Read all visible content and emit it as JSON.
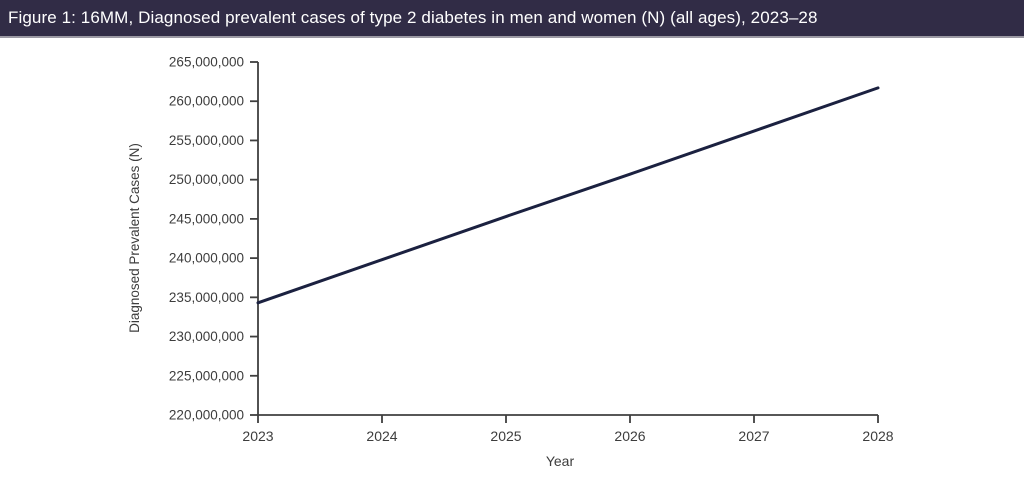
{
  "header": {
    "title": "Figure 1: 16MM, Diagnosed prevalent cases of type 2 diabetes in men and women (N) (all ages), 2023–28"
  },
  "chart_data": {
    "type": "line",
    "title": "Diagnosed prevalent cases of type 2 diabetes in men and women (N) (all ages), 2023–28",
    "x": [
      2023,
      2024,
      2025,
      2026,
      2027,
      2028
    ],
    "series": [
      {
        "name": "Diagnosed prevalent cases",
        "values": [
          234300000,
          239800000,
          245300000,
          250700000,
          256200000,
          261700000
        ]
      }
    ],
    "xlabel": "Year",
    "ylabel": "Diagnosed Prevalent Cases (N)",
    "ylim": [
      220000000,
      265000000
    ],
    "ytick_step": 5000000,
    "xlim": [
      2023,
      2028
    ],
    "grid": false,
    "legend_position": "none",
    "line_color": "#1b2140",
    "axis_color": "#3f3f3f",
    "tick_label_color": "#3d3d3d"
  },
  "colors": {
    "header_bg": "#312c46",
    "header_text": "#ffffff",
    "header_border": "#9b99a3",
    "background": "#ffffff"
  }
}
